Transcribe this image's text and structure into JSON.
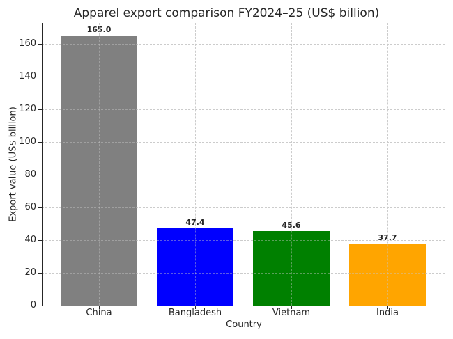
{
  "chart_data": {
    "type": "bar",
    "title": "Apparel export comparison FY2024–25 (US$ billion)",
    "xlabel": "Country",
    "ylabel": "Export value (US$ billion)",
    "categories": [
      "China",
      "Bangladesh",
      "Vietnam",
      "India"
    ],
    "values": [
      165.0,
      47.4,
      45.6,
      37.7
    ],
    "value_labels": [
      "165.0",
      "47.4",
      "45.6",
      "37.7"
    ],
    "colors": [
      "#808080",
      "#0000ff",
      "#008000",
      "#ffa500"
    ],
    "ylim": [
      0,
      173
    ],
    "yticks": [
      "0",
      "20",
      "40",
      "60",
      "80",
      "100",
      "120",
      "140",
      "160"
    ],
    "grid": true,
    "legend": null
  }
}
